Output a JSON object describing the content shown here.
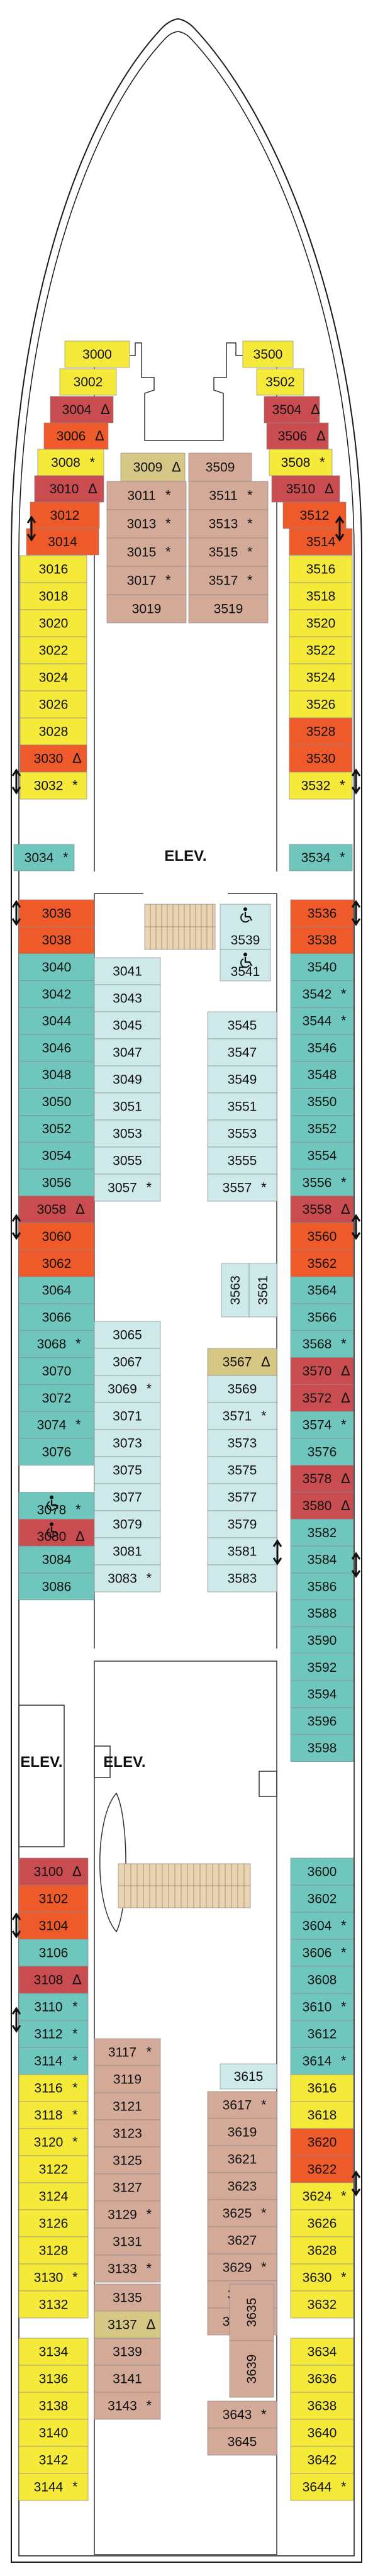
{
  "labels": {
    "elevator_top": "ELEV.",
    "elevator_left": "ELEV.",
    "elevator_center": "ELEV."
  },
  "colors": {
    "yellow": "#f5ea3a",
    "orange": "#ee5a2a",
    "red": "#c94c50",
    "teal": "#6fc6bd",
    "light_blue": "#cde9ea",
    "tan": "#d3a998",
    "olive": "#d6c785",
    "stairs": "#ead3b0"
  },
  "cabins": [
    {
      "num": "3000",
      "color": "yellow"
    },
    {
      "num": "3500",
      "color": "yellow"
    },
    {
      "num": "3002",
      "color": "yellow"
    },
    {
      "num": "3502",
      "color": "yellow"
    },
    {
      "num": "3004",
      "sym": "Δ",
      "color": "red"
    },
    {
      "num": "3504",
      "sym": "Δ",
      "color": "red"
    },
    {
      "num": "3006",
      "sym": "Δ",
      "color": "orange"
    },
    {
      "num": "3506",
      "sym": "Δ",
      "color": "red"
    },
    {
      "num": "3008",
      "sym": "*",
      "color": "yellow"
    },
    {
      "num": "3508",
      "sym": "*",
      "color": "yellow"
    },
    {
      "num": "3010",
      "sym": "Δ",
      "color": "red"
    },
    {
      "num": "3510",
      "sym": "Δ",
      "color": "red"
    },
    {
      "num": "3012",
      "color": "orange"
    },
    {
      "num": "3512",
      "color": "orange"
    },
    {
      "num": "3014",
      "color": "orange"
    },
    {
      "num": "3514",
      "color": "orange"
    },
    {
      "num": "3016",
      "color": "yellow"
    },
    {
      "num": "3516",
      "color": "yellow"
    },
    {
      "num": "3018",
      "color": "yellow"
    },
    {
      "num": "3518",
      "color": "yellow"
    },
    {
      "num": "3020",
      "color": "yellow"
    },
    {
      "num": "3520",
      "color": "yellow"
    },
    {
      "num": "3022",
      "color": "yellow"
    },
    {
      "num": "3522",
      "color": "yellow"
    },
    {
      "num": "3024",
      "color": "yellow"
    },
    {
      "num": "3524",
      "color": "yellow"
    },
    {
      "num": "3026",
      "color": "yellow"
    },
    {
      "num": "3526",
      "color": "yellow"
    },
    {
      "num": "3028",
      "color": "yellow"
    },
    {
      "num": "3528",
      "color": "orange"
    },
    {
      "num": "3030",
      "sym": "Δ",
      "color": "orange"
    },
    {
      "num": "3530",
      "color": "orange"
    },
    {
      "num": "3032",
      "sym": "*",
      "color": "yellow"
    },
    {
      "num": "3532",
      "sym": "*",
      "color": "yellow"
    },
    {
      "num": "3034",
      "sym": "*",
      "color": "teal"
    },
    {
      "num": "3534",
      "sym": "*",
      "color": "teal"
    },
    {
      "num": "3009",
      "sym": "Δ",
      "color": "olive"
    },
    {
      "num": "3509",
      "color": "tan"
    },
    {
      "num": "3011",
      "sym": "*",
      "color": "tan"
    },
    {
      "num": "3511",
      "sym": "*",
      "color": "tan"
    },
    {
      "num": "3013",
      "sym": "*",
      "color": "tan"
    },
    {
      "num": "3513",
      "sym": "*",
      "color": "tan"
    },
    {
      "num": "3015",
      "sym": "*",
      "color": "tan"
    },
    {
      "num": "3515",
      "sym": "*",
      "color": "tan"
    },
    {
      "num": "3017",
      "sym": "*",
      "color": "tan"
    },
    {
      "num": "3517",
      "sym": "*",
      "color": "tan"
    },
    {
      "num": "3019",
      "color": "tan"
    },
    {
      "num": "3519",
      "color": "tan"
    },
    {
      "num": "3036",
      "color": "orange"
    },
    {
      "num": "3038",
      "color": "orange"
    },
    {
      "num": "3040",
      "color": "teal"
    },
    {
      "num": "3042",
      "color": "teal"
    },
    {
      "num": "3044",
      "color": "teal"
    },
    {
      "num": "3046",
      "color": "teal"
    },
    {
      "num": "3048",
      "color": "teal"
    },
    {
      "num": "3050",
      "color": "teal"
    },
    {
      "num": "3052",
      "color": "teal"
    },
    {
      "num": "3054",
      "color": "teal"
    },
    {
      "num": "3056",
      "color": "teal"
    },
    {
      "num": "3058",
      "sym": "Δ",
      "color": "red"
    },
    {
      "num": "3060",
      "color": "orange"
    },
    {
      "num": "3062",
      "color": "orange"
    },
    {
      "num": "3064",
      "color": "teal"
    },
    {
      "num": "3066",
      "color": "teal"
    },
    {
      "num": "3068",
      "sym": "*",
      "color": "teal"
    },
    {
      "num": "3070",
      "color": "teal"
    },
    {
      "num": "3072",
      "color": "teal"
    },
    {
      "num": "3074",
      "sym": "*",
      "color": "teal"
    },
    {
      "num": "3076",
      "color": "teal"
    },
    {
      "num": "3078",
      "sym": "*",
      "color": "teal"
    },
    {
      "num": "3080",
      "sym": "Δ",
      "color": "red"
    },
    {
      "num": "3084",
      "color": "teal"
    },
    {
      "num": "3086",
      "color": "teal"
    },
    {
      "num": "3536",
      "color": "orange"
    },
    {
      "num": "3538",
      "color": "orange"
    },
    {
      "num": "3540",
      "color": "teal"
    },
    {
      "num": "3542",
      "sym": "*",
      "color": "teal"
    },
    {
      "num": "3544",
      "sym": "*",
      "color": "teal"
    },
    {
      "num": "3546",
      "color": "teal"
    },
    {
      "num": "3548",
      "color": "teal"
    },
    {
      "num": "3550",
      "color": "teal"
    },
    {
      "num": "3552",
      "color": "teal"
    },
    {
      "num": "3554",
      "color": "teal"
    },
    {
      "num": "3556",
      "sym": "*",
      "color": "teal"
    },
    {
      "num": "3558",
      "sym": "Δ",
      "color": "red"
    },
    {
      "num": "3560",
      "color": "orange"
    },
    {
      "num": "3562",
      "color": "orange"
    },
    {
      "num": "3564",
      "color": "teal"
    },
    {
      "num": "3566",
      "color": "teal"
    },
    {
      "num": "3568",
      "sym": "*",
      "color": "teal"
    },
    {
      "num": "3570",
      "sym": "Δ",
      "color": "red"
    },
    {
      "num": "3572",
      "sym": "Δ",
      "color": "red"
    },
    {
      "num": "3574",
      "sym": "*",
      "color": "teal"
    },
    {
      "num": "3576",
      "color": "teal"
    },
    {
      "num": "3578",
      "sym": "Δ",
      "color": "red"
    },
    {
      "num": "3580",
      "sym": "Δ",
      "color": "red"
    },
    {
      "num": "3582",
      "color": "teal"
    },
    {
      "num": "3584",
      "color": "teal"
    },
    {
      "num": "3586",
      "color": "teal"
    },
    {
      "num": "3588",
      "color": "teal"
    },
    {
      "num": "3590",
      "color": "teal"
    },
    {
      "num": "3592",
      "color": "teal"
    },
    {
      "num": "3594",
      "color": "teal"
    },
    {
      "num": "3596",
      "color": "teal"
    },
    {
      "num": "3598",
      "color": "teal"
    },
    {
      "num": "3041",
      "color": "light_blue"
    },
    {
      "num": "3043",
      "color": "light_blue"
    },
    {
      "num": "3045",
      "color": "light_blue"
    },
    {
      "num": "3047",
      "color": "light_blue"
    },
    {
      "num": "3049",
      "color": "light_blue"
    },
    {
      "num": "3051",
      "color": "light_blue"
    },
    {
      "num": "3053",
      "color": "light_blue"
    },
    {
      "num": "3055",
      "color": "light_blue"
    },
    {
      "num": "3057",
      "sym": "*",
      "color": "light_blue"
    },
    {
      "num": "3065",
      "color": "light_blue"
    },
    {
      "num": "3067",
      "color": "light_blue"
    },
    {
      "num": "3069",
      "sym": "*",
      "color": "light_blue"
    },
    {
      "num": "3071",
      "color": "light_blue"
    },
    {
      "num": "3073",
      "color": "light_blue"
    },
    {
      "num": "3075",
      "color": "light_blue"
    },
    {
      "num": "3077",
      "color": "light_blue"
    },
    {
      "num": "3079",
      "color": "light_blue"
    },
    {
      "num": "3081",
      "color": "light_blue"
    },
    {
      "num": "3083",
      "sym": "*",
      "color": "light_blue"
    },
    {
      "num": "3539",
      "color": "light_blue"
    },
    {
      "num": "3541",
      "color": "light_blue"
    },
    {
      "num": "3545",
      "color": "light_blue"
    },
    {
      "num": "3547",
      "color": "light_blue"
    },
    {
      "num": "3549",
      "color": "light_blue"
    },
    {
      "num": "3551",
      "color": "light_blue"
    },
    {
      "num": "3553",
      "color": "light_blue"
    },
    {
      "num": "3555",
      "color": "light_blue"
    },
    {
      "num": "3557",
      "sym": "*",
      "color": "light_blue"
    },
    {
      "num": "3563",
      "color": "light_blue"
    },
    {
      "num": "3561",
      "color": "light_blue"
    },
    {
      "num": "3567",
      "sym": "Δ",
      "color": "olive"
    },
    {
      "num": "3569",
      "color": "light_blue"
    },
    {
      "num": "3571",
      "sym": "*",
      "color": "light_blue"
    },
    {
      "num": "3573",
      "color": "light_blue"
    },
    {
      "num": "3575",
      "color": "light_blue"
    },
    {
      "num": "3577",
      "color": "light_blue"
    },
    {
      "num": "3579",
      "color": "light_blue"
    },
    {
      "num": "3581",
      "color": "light_blue"
    },
    {
      "num": "3583",
      "color": "light_blue"
    },
    {
      "num": "3100",
      "sym": "Δ",
      "color": "red"
    },
    {
      "num": "3102",
      "color": "orange"
    },
    {
      "num": "3104",
      "color": "orange"
    },
    {
      "num": "3106",
      "color": "teal"
    },
    {
      "num": "3108",
      "sym": "Δ",
      "color": "red"
    },
    {
      "num": "3110",
      "sym": "*",
      "color": "teal"
    },
    {
      "num": "3112",
      "sym": "*",
      "color": "teal"
    },
    {
      "num": "3114",
      "sym": "*",
      "color": "teal"
    },
    {
      "num": "3116",
      "sym": "*",
      "color": "yellow"
    },
    {
      "num": "3118",
      "sym": "*",
      "color": "yellow"
    },
    {
      "num": "3120",
      "sym": "*",
      "color": "yellow"
    },
    {
      "num": "3122",
      "color": "yellow"
    },
    {
      "num": "3124",
      "color": "yellow"
    },
    {
      "num": "3126",
      "color": "yellow"
    },
    {
      "num": "3128",
      "color": "yellow"
    },
    {
      "num": "3130",
      "sym": "*",
      "color": "yellow"
    },
    {
      "num": "3132",
      "color": "yellow"
    },
    {
      "num": "3134",
      "color": "yellow"
    },
    {
      "num": "3136",
      "color": "yellow"
    },
    {
      "num": "3138",
      "color": "yellow"
    },
    {
      "num": "3140",
      "color": "yellow"
    },
    {
      "num": "3142",
      "color": "yellow"
    },
    {
      "num": "3144",
      "sym": "*",
      "color": "yellow"
    },
    {
      "num": "3600",
      "color": "teal"
    },
    {
      "num": "3602",
      "color": "teal"
    },
    {
      "num": "3604",
      "sym": "*",
      "color": "teal"
    },
    {
      "num": "3606",
      "sym": "*",
      "color": "teal"
    },
    {
      "num": "3608",
      "color": "teal"
    },
    {
      "num": "3610",
      "sym": "*",
      "color": "teal"
    },
    {
      "num": "3612",
      "color": "teal"
    },
    {
      "num": "3614",
      "sym": "*",
      "color": "teal"
    },
    {
      "num": "3616",
      "color": "yellow"
    },
    {
      "num": "3618",
      "color": "yellow"
    },
    {
      "num": "3620",
      "color": "orange"
    },
    {
      "num": "3622",
      "color": "orange"
    },
    {
      "num": "3624",
      "sym": "*",
      "color": "yellow"
    },
    {
      "num": "3626",
      "color": "yellow"
    },
    {
      "num": "3628",
      "color": "yellow"
    },
    {
      "num": "3630",
      "sym": "*",
      "color": "yellow"
    },
    {
      "num": "3632",
      "color": "yellow"
    },
    {
      "num": "3634",
      "color": "yellow"
    },
    {
      "num": "3636",
      "color": "yellow"
    },
    {
      "num": "3638",
      "color": "yellow"
    },
    {
      "num": "3640",
      "color": "yellow"
    },
    {
      "num": "3642",
      "color": "yellow"
    },
    {
      "num": "3644",
      "sym": "*",
      "color": "yellow"
    },
    {
      "num": "3117",
      "sym": "*",
      "color": "tan"
    },
    {
      "num": "3119",
      "color": "tan"
    },
    {
      "num": "3121",
      "color": "tan"
    },
    {
      "num": "3123",
      "color": "tan"
    },
    {
      "num": "3125",
      "color": "tan"
    },
    {
      "num": "3127",
      "color": "tan"
    },
    {
      "num": "3129",
      "sym": "*",
      "color": "tan"
    },
    {
      "num": "3131",
      "color": "tan"
    },
    {
      "num": "3133",
      "sym": "*",
      "color": "tan"
    },
    {
      "num": "3135",
      "color": "tan"
    },
    {
      "num": "3137",
      "sym": "Δ",
      "color": "olive"
    },
    {
      "num": "3139",
      "color": "tan"
    },
    {
      "num": "3141",
      "color": "tan"
    },
    {
      "num": "3143",
      "sym": "*",
      "color": "tan"
    },
    {
      "num": "3615",
      "color": "light_blue"
    },
    {
      "num": "3617",
      "sym": "*",
      "color": "tan"
    },
    {
      "num": "3619",
      "color": "tan"
    },
    {
      "num": "3621",
      "color": "tan"
    },
    {
      "num": "3623",
      "color": "tan"
    },
    {
      "num": "3625",
      "sym": "*",
      "color": "tan"
    },
    {
      "num": "3627",
      "color": "tan"
    },
    {
      "num": "3629",
      "sym": "*",
      "color": "tan"
    },
    {
      "num": "3631",
      "color": "tan"
    },
    {
      "num": "3633",
      "sym": "*",
      "color": "tan"
    },
    {
      "num": "3635",
      "color": "tan"
    },
    {
      "num": "3639",
      "color": "tan"
    },
    {
      "num": "3643",
      "sym": "*",
      "color": "tan"
    },
    {
      "num": "3645",
      "color": "tan"
    }
  ]
}
